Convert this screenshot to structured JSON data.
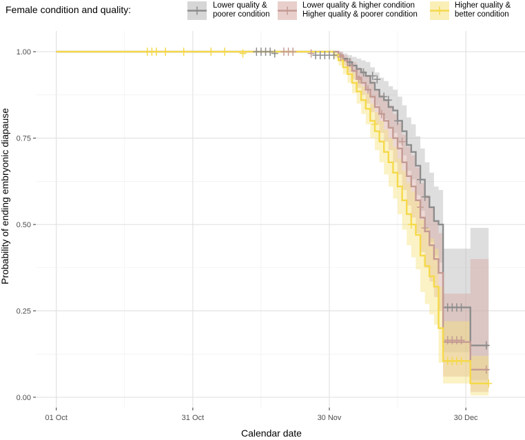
{
  "chart_data": {
    "type": "line",
    "subtype": "kaplan-meier step curves with confidence bands and censor marks",
    "xlabel": "Calendar date",
    "ylabel": "Probability of ending embryonic diapause",
    "x_ticks": [
      {
        "label": "01 Oct",
        "day": 0
      },
      {
        "label": "31 Oct",
        "day": 30
      },
      {
        "label": "30 Nov",
        "day": 60
      },
      {
        "label": "30 Dec",
        "day": 90
      }
    ],
    "y_ticks": [
      "0.00",
      "0.25",
      "0.50",
      "0.75",
      "1.00"
    ],
    "xlim": [
      -4.5,
      103
    ],
    "ylim": [
      -0.03,
      1.06
    ],
    "grid": true,
    "legend": {
      "title": "Female condition and quality:",
      "position": "top",
      "entries": [
        {
          "lines": [
            "Lower quality &",
            "poorer condition"
          ]
        },
        {
          "lines": [
            "Lower quality & higher condition",
            "Higher quality & poorer condition"
          ]
        },
        {
          "lines": [
            "Higher quality &",
            "better condition"
          ]
        }
      ]
    },
    "series": [
      {
        "color": "#8c8c8c",
        "band_color": "#b5b5b5",
        "steps": [
          [
            0,
            1.0
          ],
          [
            62,
            0.99
          ],
          [
            63,
            0.98
          ],
          [
            64,
            0.97
          ],
          [
            65,
            0.96
          ],
          [
            66,
            0.95
          ],
          [
            67,
            0.94
          ],
          [
            68,
            0.93
          ],
          [
            69,
            0.91
          ],
          [
            70,
            0.89
          ],
          [
            71,
            0.87
          ],
          [
            72,
            0.86
          ],
          [
            73,
            0.84
          ],
          [
            74,
            0.83
          ],
          [
            75,
            0.8
          ],
          [
            76,
            0.77
          ],
          [
            77,
            0.73
          ],
          [
            78,
            0.71
          ],
          [
            79,
            0.67
          ],
          [
            80,
            0.63
          ],
          [
            81,
            0.58
          ],
          [
            82,
            0.55
          ],
          [
            83,
            0.51
          ],
          [
            84,
            0.5
          ],
          [
            85,
            0.26
          ],
          [
            90,
            0.26
          ],
          [
            91,
            0.15
          ],
          [
            95,
            0.15
          ]
        ],
        "lower": [
          [
            0,
            1.0
          ],
          [
            62,
            0.985
          ],
          [
            63,
            0.97
          ],
          [
            64,
            0.955
          ],
          [
            65,
            0.94
          ],
          [
            66,
            0.925
          ],
          [
            67,
            0.91
          ],
          [
            68,
            0.89
          ],
          [
            69,
            0.865
          ],
          [
            70,
            0.845
          ],
          [
            71,
            0.82
          ],
          [
            72,
            0.805
          ],
          [
            73,
            0.78
          ],
          [
            74,
            0.765
          ],
          [
            75,
            0.735
          ],
          [
            76,
            0.7
          ],
          [
            77,
            0.655
          ],
          [
            78,
            0.63
          ],
          [
            79,
            0.585
          ],
          [
            80,
            0.54
          ],
          [
            81,
            0.48
          ],
          [
            82,
            0.45
          ],
          [
            83,
            0.41
          ],
          [
            84,
            0.39
          ],
          [
            85,
            0.13
          ],
          [
            90,
            0.13
          ],
          [
            91,
            0.05
          ],
          [
            95,
            0.05
          ]
        ],
        "upper": [
          [
            0,
            1.0
          ],
          [
            62,
            1.0
          ],
          [
            63,
            0.995
          ],
          [
            64,
            0.99
          ],
          [
            65,
            0.985
          ],
          [
            66,
            0.98
          ],
          [
            67,
            0.975
          ],
          [
            68,
            0.97
          ],
          [
            69,
            0.955
          ],
          [
            70,
            0.94
          ],
          [
            71,
            0.925
          ],
          [
            72,
            0.915
          ],
          [
            73,
            0.9
          ],
          [
            74,
            0.89
          ],
          [
            75,
            0.87
          ],
          [
            76,
            0.845
          ],
          [
            77,
            0.81
          ],
          [
            78,
            0.79
          ],
          [
            79,
            0.755
          ],
          [
            80,
            0.72
          ],
          [
            81,
            0.68
          ],
          [
            82,
            0.65
          ],
          [
            83,
            0.61
          ],
          [
            84,
            0.6
          ],
          [
            85,
            0.43
          ],
          [
            90,
            0.43
          ],
          [
            91,
            0.49
          ],
          [
            95,
            0.49
          ]
        ],
        "censor": [
          [
            44,
            1.0
          ],
          [
            45,
            1.0
          ],
          [
            46,
            1.0
          ],
          [
            47,
            1.0
          ],
          [
            48,
            0.995
          ],
          [
            57,
            0.99
          ],
          [
            58,
            0.99
          ],
          [
            59,
            0.99
          ],
          [
            60,
            0.99
          ],
          [
            61,
            0.99
          ],
          [
            64.5,
            0.97
          ],
          [
            67.5,
            0.94
          ],
          [
            69.5,
            0.93
          ],
          [
            70.5,
            0.92
          ],
          [
            72,
            0.87
          ],
          [
            73,
            0.86
          ],
          [
            75,
            0.8
          ],
          [
            80,
            0.63
          ],
          [
            81,
            0.58
          ],
          [
            86,
            0.26
          ],
          [
            87,
            0.26
          ],
          [
            88,
            0.26
          ],
          [
            89,
            0.26
          ],
          [
            94.5,
            0.15
          ]
        ]
      },
      {
        "color": "#c49a93",
        "band_color": "#d6a8a2",
        "steps": [
          [
            0,
            1.0
          ],
          [
            62,
            0.99
          ],
          [
            63,
            0.975
          ],
          [
            64,
            0.96
          ],
          [
            65,
            0.945
          ],
          [
            66,
            0.925
          ],
          [
            67,
            0.91
          ],
          [
            68,
            0.89
          ],
          [
            69,
            0.87
          ],
          [
            70,
            0.84
          ],
          [
            71,
            0.82
          ],
          [
            72,
            0.8
          ],
          [
            73,
            0.78
          ],
          [
            74,
            0.75
          ],
          [
            75,
            0.72
          ],
          [
            76,
            0.68
          ],
          [
            77,
            0.64
          ],
          [
            78,
            0.61
          ],
          [
            79,
            0.57
          ],
          [
            80,
            0.52
          ],
          [
            81,
            0.48
          ],
          [
            82,
            0.44
          ],
          [
            83,
            0.4
          ],
          [
            84,
            0.36
          ],
          [
            85,
            0.16
          ],
          [
            90,
            0.16
          ],
          [
            91,
            0.08
          ],
          [
            95,
            0.08
          ]
        ],
        "lower": [
          [
            0,
            1.0
          ],
          [
            62,
            0.98
          ],
          [
            63,
            0.96
          ],
          [
            64,
            0.94
          ],
          [
            65,
            0.92
          ],
          [
            66,
            0.895
          ],
          [
            67,
            0.875
          ],
          [
            68,
            0.85
          ],
          [
            69,
            0.825
          ],
          [
            70,
            0.79
          ],
          [
            71,
            0.765
          ],
          [
            72,
            0.74
          ],
          [
            73,
            0.715
          ],
          [
            74,
            0.68
          ],
          [
            75,
            0.645
          ],
          [
            76,
            0.6
          ],
          [
            77,
            0.555
          ],
          [
            78,
            0.52
          ],
          [
            79,
            0.475
          ],
          [
            80,
            0.42
          ],
          [
            81,
            0.375
          ],
          [
            82,
            0.335
          ],
          [
            83,
            0.29
          ],
          [
            84,
            0.25
          ],
          [
            85,
            0.06
          ],
          [
            90,
            0.06
          ],
          [
            91,
            0.015
          ],
          [
            95,
            0.015
          ]
        ],
        "upper": [
          [
            0,
            1.0
          ],
          [
            62,
            1.0
          ],
          [
            63,
            0.99
          ],
          [
            64,
            0.98
          ],
          [
            65,
            0.97
          ],
          [
            66,
            0.955
          ],
          [
            67,
            0.945
          ],
          [
            68,
            0.93
          ],
          [
            69,
            0.915
          ],
          [
            70,
            0.89
          ],
          [
            71,
            0.875
          ],
          [
            72,
            0.86
          ],
          [
            73,
            0.845
          ],
          [
            74,
            0.82
          ],
          [
            75,
            0.795
          ],
          [
            76,
            0.76
          ],
          [
            77,
            0.725
          ],
          [
            78,
            0.7
          ],
          [
            79,
            0.665
          ],
          [
            80,
            0.62
          ],
          [
            81,
            0.585
          ],
          [
            82,
            0.55
          ],
          [
            83,
            0.51
          ],
          [
            84,
            0.475
          ],
          [
            85,
            0.3
          ],
          [
            90,
            0.3
          ],
          [
            91,
            0.4
          ],
          [
            95,
            0.4
          ]
        ],
        "censor": [
          [
            50,
            1.0
          ],
          [
            51,
            1.0
          ],
          [
            52,
            1.0
          ],
          [
            56,
            0.995
          ],
          [
            62.5,
            0.985
          ],
          [
            66.5,
            0.92
          ],
          [
            68.5,
            0.89
          ],
          [
            71.5,
            0.82
          ],
          [
            76,
            0.74
          ],
          [
            80,
            0.55
          ],
          [
            81,
            0.49
          ],
          [
            86,
            0.165
          ],
          [
            87,
            0.165
          ],
          [
            88,
            0.165
          ],
          [
            89,
            0.165
          ],
          [
            94.5,
            0.08
          ]
        ]
      },
      {
        "color": "#f5d94a",
        "band_color": "#f7e27e",
        "steps": [
          [
            0,
            1.0
          ],
          [
            61,
            0.99
          ],
          [
            62,
            0.975
          ],
          [
            63,
            0.955
          ],
          [
            64,
            0.935
          ],
          [
            65,
            0.91
          ],
          [
            66,
            0.885
          ],
          [
            67,
            0.86
          ],
          [
            68,
            0.835
          ],
          [
            69,
            0.8
          ],
          [
            70,
            0.77
          ],
          [
            71,
            0.74
          ],
          [
            72,
            0.71
          ],
          [
            73,
            0.68
          ],
          [
            74,
            0.65
          ],
          [
            75,
            0.61
          ],
          [
            76,
            0.57
          ],
          [
            77,
            0.53
          ],
          [
            78,
            0.5
          ],
          [
            79,
            0.47
          ],
          [
            80,
            0.41
          ],
          [
            81,
            0.38
          ],
          [
            82,
            0.35
          ],
          [
            83,
            0.32
          ],
          [
            84,
            0.2
          ],
          [
            85,
            0.105
          ],
          [
            90,
            0.105
          ],
          [
            91,
            0.04
          ],
          [
            95,
            0.04
          ]
        ],
        "lower": [
          [
            0,
            1.0
          ],
          [
            61,
            0.98
          ],
          [
            62,
            0.96
          ],
          [
            63,
            0.935
          ],
          [
            64,
            0.91
          ],
          [
            65,
            0.88
          ],
          [
            66,
            0.85
          ],
          [
            67,
            0.82
          ],
          [
            68,
            0.79
          ],
          [
            69,
            0.75
          ],
          [
            70,
            0.715
          ],
          [
            71,
            0.68
          ],
          [
            72,
            0.645
          ],
          [
            73,
            0.61
          ],
          [
            74,
            0.575
          ],
          [
            75,
            0.53
          ],
          [
            76,
            0.485
          ],
          [
            77,
            0.44
          ],
          [
            78,
            0.405
          ],
          [
            79,
            0.37
          ],
          [
            80,
            0.305
          ],
          [
            81,
            0.27
          ],
          [
            82,
            0.24
          ],
          [
            83,
            0.21
          ],
          [
            84,
            0.1
          ],
          [
            85,
            0.04
          ],
          [
            90,
            0.04
          ],
          [
            91,
            0.005
          ],
          [
            95,
            0.005
          ]
        ],
        "upper": [
          [
            0,
            1.0
          ],
          [
            61,
            1.0
          ],
          [
            62,
            0.99
          ],
          [
            63,
            0.975
          ],
          [
            64,
            0.96
          ],
          [
            65,
            0.94
          ],
          [
            66,
            0.92
          ],
          [
            67,
            0.9
          ],
          [
            68,
            0.88
          ],
          [
            69,
            0.85
          ],
          [
            70,
            0.825
          ],
          [
            71,
            0.8
          ],
          [
            72,
            0.775
          ],
          [
            73,
            0.75
          ],
          [
            74,
            0.725
          ],
          [
            75,
            0.69
          ],
          [
            76,
            0.655
          ],
          [
            77,
            0.62
          ],
          [
            78,
            0.595
          ],
          [
            79,
            0.57
          ],
          [
            80,
            0.515
          ],
          [
            81,
            0.49
          ],
          [
            82,
            0.46
          ],
          [
            83,
            0.43
          ],
          [
            84,
            0.32
          ],
          [
            85,
            0.22
          ],
          [
            90,
            0.22
          ],
          [
            91,
            0.12
          ],
          [
            95,
            0.12
          ]
        ],
        "censor": [
          [
            20,
            1.0
          ],
          [
            21,
            1.0
          ],
          [
            22,
            1.0
          ],
          [
            24,
            1.0
          ],
          [
            28,
            1.0
          ],
          [
            34,
            1.0
          ],
          [
            37,
            1.0
          ],
          [
            41,
            0.995
          ],
          [
            70,
            0.79
          ],
          [
            78,
            0.5
          ],
          [
            86,
            0.105
          ],
          [
            87,
            0.105
          ],
          [
            88,
            0.105
          ],
          [
            89,
            0.105
          ],
          [
            95,
            0.04
          ]
        ]
      }
    ]
  }
}
